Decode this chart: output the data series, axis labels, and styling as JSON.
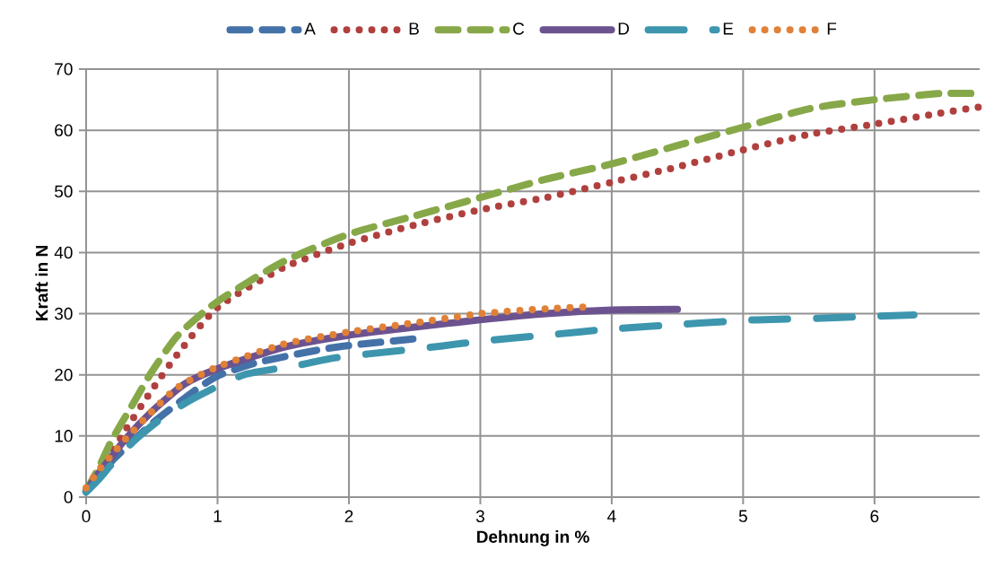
{
  "chart_data": {
    "type": "line",
    "xlabel": "Dehnung  in %",
    "ylabel": "Kraft in N",
    "xlim": [
      0,
      6.8
    ],
    "ylim": [
      0,
      70
    ],
    "xticks": [
      0,
      1,
      2,
      3,
      4,
      5,
      6
    ],
    "yticks": [
      0,
      10,
      20,
      30,
      40,
      50,
      60,
      70
    ],
    "grid": true,
    "legend": "top",
    "marker": "none",
    "series": [
      {
        "name": "A",
        "color": "#4472a8",
        "line_style": "dashed",
        "x": [
          0,
          0.2,
          0.5,
          0.8,
          1,
          1.3,
          1.75,
          2,
          2.55
        ],
        "values": [
          1,
          6,
          12,
          17,
          19.8,
          22,
          24,
          24.8,
          26
        ]
      },
      {
        "name": "B",
        "color": "#b0403e",
        "line_style": "dotted",
        "x": [
          0,
          0.1,
          0.2,
          0.3,
          0.5,
          0.7,
          1,
          1.5,
          2,
          2.5,
          3,
          3.5,
          4,
          4.5,
          5,
          5.5,
          6,
          6.5,
          6.8
        ],
        "values": [
          1,
          4,
          7.5,
          11,
          17.5,
          23.5,
          31,
          37.5,
          41.5,
          44.5,
          47,
          49,
          51.5,
          54,
          56.8,
          59.3,
          61,
          62.8,
          63.8
        ]
      },
      {
        "name": "C",
        "color": "#87a848",
        "line_style": "dashed",
        "x": [
          0,
          0.1,
          0.2,
          0.35,
          0.5,
          0.7,
          1,
          1.5,
          2,
          2.5,
          3,
          3.5,
          4,
          4.5,
          5,
          5.5,
          6,
          6.5,
          6.8
        ],
        "values": [
          1,
          5,
          9.5,
          15,
          20.5,
          26.5,
          32,
          38.5,
          43,
          46,
          49,
          52,
          54.5,
          57.5,
          60.5,
          63.5,
          65,
          66,
          66
        ]
      },
      {
        "name": "D",
        "color": "#6c5390",
        "line_style": "solid",
        "x": [
          0,
          0.1,
          0.3,
          0.5,
          0.75,
          1,
          1.5,
          2,
          2.5,
          3,
          3.5,
          4,
          4.5
        ],
        "values": [
          1,
          4,
          9.5,
          14,
          18.5,
          21,
          24.5,
          26.5,
          27.8,
          29,
          30,
          30.6,
          30.7
        ]
      },
      {
        "name": "E",
        "color": "#3d96ae",
        "line_style": "dashdot",
        "x": [
          0,
          0.1,
          0.2,
          0.38,
          0.6,
          0.85,
          1.2,
          1.6,
          1.9,
          2.4,
          2.7,
          3,
          3.5,
          3.75,
          4,
          4.55,
          4.85,
          5.1,
          5.65,
          5.9,
          6.3
        ],
        "values": [
          0.8,
          3,
          5.5,
          9.5,
          13.3,
          16.5,
          20,
          21.5,
          22.8,
          24,
          24.7,
          25.5,
          26.5,
          27,
          27.5,
          28.3,
          28.7,
          29,
          29.3,
          29.5,
          29.8
        ]
      },
      {
        "name": "F",
        "color": "#e08138",
        "line_style": "dotted",
        "x": [
          0,
          0.1,
          0.2,
          0.3,
          0.5,
          0.7,
          1,
          1.5,
          2,
          2.5,
          3,
          3.5,
          3.8
        ],
        "values": [
          1.5,
          4.5,
          7,
          9.5,
          14,
          18,
          21.3,
          25,
          27,
          28.5,
          30,
          30.8,
          31.1
        ]
      }
    ]
  }
}
